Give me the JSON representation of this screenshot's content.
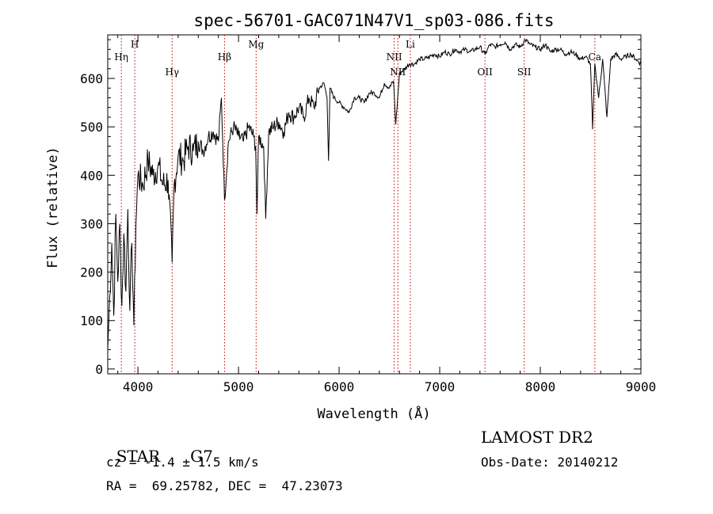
{
  "chart_data": {
    "type": "line",
    "title": "spec-56701-GAC071N47V1_sp03-086.fits",
    "xlabel": "Wavelength (Å)",
    "ylabel": "Flux (relative)",
    "xlim": [
      3700,
      9000
    ],
    "ylim": [
      -10,
      690
    ],
    "x_ticks": [
      4000,
      5000,
      6000,
      7000,
      8000,
      9000
    ],
    "x_tick_labels": [
      "4000",
      "5000",
      "6000",
      "7000",
      "8000",
      "9000"
    ],
    "y_ticks": [
      0,
      100,
      200,
      300,
      400,
      500,
      600
    ],
    "y_tick_labels": [
      "0",
      "100",
      "200",
      "300",
      "400",
      "500",
      "600"
    ],
    "grid": false,
    "series": [
      {
        "name": "flux",
        "x": [
          3700,
          3720,
          3740,
          3760,
          3780,
          3800,
          3820,
          3840,
          3860,
          3880,
          3900,
          3920,
          3940,
          3960,
          3980,
          4000,
          4050,
          4100,
          4150,
          4200,
          4250,
          4300,
          4340,
          4360,
          4400,
          4450,
          4500,
          4550,
          4600,
          4650,
          4700,
          4750,
          4800,
          4830,
          4861,
          4900,
          4950,
          5000,
          5050,
          5100,
          5150,
          5170,
          5184,
          5200,
          5250,
          5270,
          5300,
          5350,
          5400,
          5450,
          5500,
          5550,
          5600,
          5650,
          5700,
          5750,
          5800,
          5850,
          5880,
          5895,
          5910,
          5950,
          6000,
          6050,
          6100,
          6150,
          6200,
          6250,
          6300,
          6350,
          6400,
          6450,
          6500,
          6540,
          6563,
          6600,
          6650,
          6700,
          6750,
          6800,
          6850,
          6900,
          6950,
          7000,
          7050,
          7100,
          7150,
          7200,
          7250,
          7300,
          7350,
          7400,
          7450,
          7500,
          7550,
          7600,
          7650,
          7700,
          7750,
          7800,
          7850,
          7900,
          7950,
          8000,
          8050,
          8100,
          8150,
          8200,
          8250,
          8300,
          8350,
          8400,
          8450,
          8498,
          8520,
          8542,
          8580,
          8620,
          8662,
          8700,
          8750,
          8800,
          8850,
          8900,
          8950,
          9000
        ],
        "y": [
          40,
          150,
          260,
          110,
          320,
          180,
          300,
          130,
          280,
          160,
          330,
          120,
          260,
          90,
          300,
          400,
          380,
          430,
          400,
          420,
          380,
          390,
          220,
          380,
          440,
          430,
          460,
          450,
          470,
          450,
          480,
          490,
          470,
          560,
          350,
          470,
          500,
          480,
          470,
          500,
          480,
          460,
          320,
          480,
          460,
          310,
          490,
          500,
          510,
          490,
          530,
          520,
          540,
          520,
          560,
          540,
          580,
          590,
          560,
          430,
          580,
          560,
          550,
          540,
          530,
          560,
          560,
          550,
          570,
          570,
          560,
          590,
          580,
          595,
          505,
          610,
          620,
          630,
          630,
          640,
          640,
          645,
          650,
          645,
          655,
          650,
          660,
          655,
          660,
          655,
          660,
          665,
          650,
          670,
          665,
          670,
          675,
          660,
          670,
          665,
          680,
          670,
          665,
          660,
          670,
          655,
          660,
          660,
          650,
          655,
          650,
          640,
          645,
          630,
          495,
          630,
          560,
          640,
          520,
          640,
          650,
          640,
          645,
          650,
          640,
          630
        ]
      }
    ],
    "line_marks": [
      {
        "label": "Hη",
        "x": 3835
      },
      {
        "label": "H",
        "x": 3969
      },
      {
        "label": "Hγ",
        "x": 4340
      },
      {
        "label": "Hβ",
        "x": 4861
      },
      {
        "label": "Mg",
        "x": 5175
      },
      {
        "label": "NII",
        "x": 6548
      },
      {
        "label": "NII",
        "x": 6584
      },
      {
        "label": "Li",
        "x": 6708
      },
      {
        "label": "OII",
        "x": 7450
      },
      {
        "label": "SII",
        "x": 7840
      },
      {
        "label": "Ca",
        "x": 8542
      }
    ]
  },
  "info": {
    "object_class": "STAR",
    "subclass": "G7",
    "cz_line": "cz = -1.4 ± 1.5 km/s",
    "coords_line": "RA =  69.25782, DEC =  47.23073",
    "survey": "LAMOST DR2",
    "obs_date_line": "Obs-Date: 20140212"
  }
}
